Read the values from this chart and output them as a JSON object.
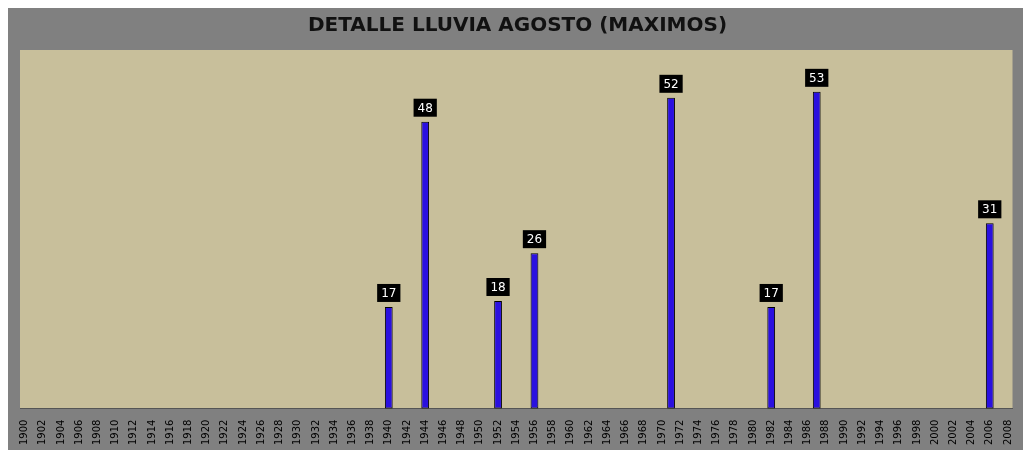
{
  "chart_data": {
    "type": "bar",
    "title": "DETALLE LLUVIA AGOSTO (MAXIMOS)",
    "categories": [
      "1900",
      null,
      "1902",
      null,
      "1904",
      null,
      "1906",
      null,
      "1908",
      null,
      "1910",
      null,
      "1912",
      null,
      "1914",
      null,
      "1916",
      null,
      "1918",
      null,
      "1920",
      null,
      "1922",
      null,
      "1924",
      null,
      "1926",
      null,
      "1928",
      null,
      "1930",
      null,
      "1932",
      null,
      "1934",
      null,
      "1936",
      null,
      "1938",
      null,
      "1940",
      null,
      "1942",
      null,
      "1944",
      null,
      "1946",
      null,
      "1948",
      null,
      "1950",
      null,
      "1952",
      null,
      "1954",
      null,
      "1956",
      null,
      "1958",
      null,
      "1960",
      null,
      "1962",
      null,
      "1964",
      null,
      "1966",
      null,
      "1968",
      null,
      "1970",
      null,
      "1972",
      null,
      "1974",
      null,
      "1976",
      null,
      "1978",
      null,
      "1980",
      null,
      "1982",
      null,
      "1984",
      null,
      "1986",
      null,
      "1988",
      null,
      "1990",
      null,
      "1992",
      null,
      "1994",
      null,
      "1996",
      null,
      "1998",
      null,
      "2000",
      null,
      "2002",
      null,
      "2004",
      null,
      "2006",
      null,
      "2008"
    ],
    "values": [
      null,
      null,
      null,
      null,
      null,
      null,
      null,
      null,
      null,
      null,
      null,
      null,
      null,
      null,
      null,
      null,
      null,
      null,
      null,
      null,
      null,
      null,
      null,
      null,
      null,
      null,
      null,
      null,
      null,
      null,
      null,
      null,
      null,
      null,
      null,
      null,
      null,
      null,
      null,
      null,
      17,
      null,
      null,
      null,
      48,
      null,
      null,
      null,
      null,
      null,
      null,
      null,
      18,
      null,
      null,
      null,
      26,
      null,
      null,
      null,
      null,
      null,
      null,
      null,
      null,
      null,
      null,
      null,
      null,
      null,
      null,
      52,
      null,
      null,
      null,
      null,
      null,
      null,
      null,
      null,
      null,
      null,
      17,
      null,
      null,
      null,
      null,
      53,
      null,
      null,
      null,
      null,
      null,
      null,
      null,
      null,
      null,
      null,
      null,
      null,
      null,
      null,
      null,
      null,
      null,
      null,
      31,
      null,
      null
    ],
    "data_labels": true,
    "color": "#2a10e0",
    "tick_labels": "x",
    "grid": false,
    "legend": false
  }
}
